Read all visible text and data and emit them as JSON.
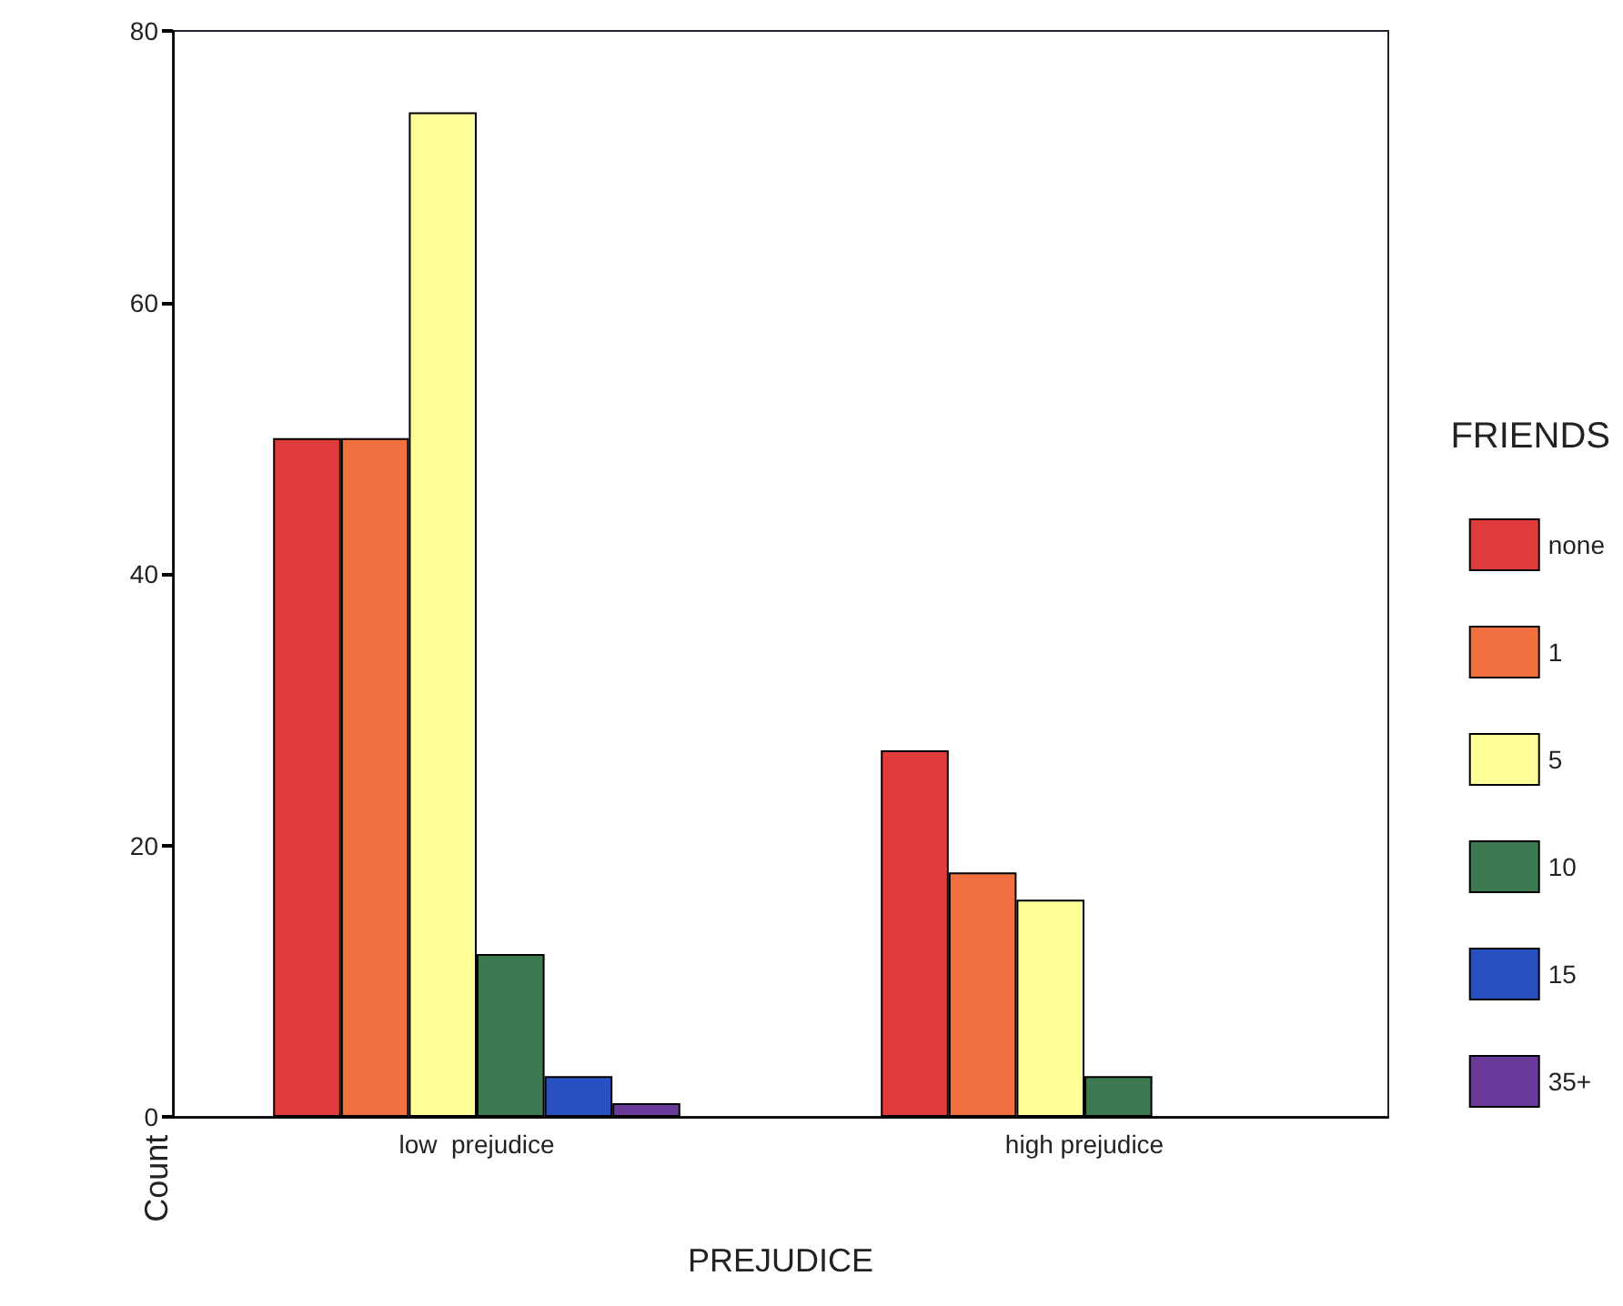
{
  "chart_data": {
    "type": "bar",
    "xlabel": "PREJUDICE",
    "ylabel": "Count",
    "legend_title": "FRIENDS",
    "categories": [
      "low  prejudice",
      "high prejudice"
    ],
    "series": [
      {
        "name": "none",
        "color": "#e03c3c",
        "values": [
          50,
          27
        ]
      },
      {
        "name": "1",
        "color": "#f07040",
        "values": [
          50,
          18
        ]
      },
      {
        "name": "5",
        "color": "#ffff99",
        "values": [
          74,
          16
        ]
      },
      {
        "name": "10",
        "color": "#3c7850",
        "values": [
          12,
          3
        ]
      },
      {
        "name": "15",
        "color": "#2850c0",
        "values": [
          3,
          null
        ]
      },
      {
        "name": "35+",
        "color": "#6a3a9a",
        "values": [
          1,
          null
        ]
      }
    ],
    "ylim": [
      0,
      80
    ],
    "yticks": [
      0,
      20,
      40,
      60,
      80
    ],
    "grid": false,
    "legend": "right"
  }
}
